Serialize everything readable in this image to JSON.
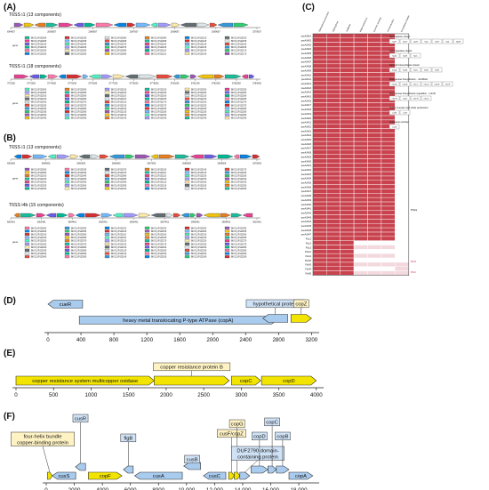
{
  "panels": {
    "A": {
      "label": "(A)",
      "subpanels": [
        {
          "title": "T6SS i1 (13 components)",
          "ticks": [
            "2064657",
            "2065657",
            "2066657",
            "2067657",
            "2068657",
            "2069657",
            "2070657"
          ],
          "gene_label": "gene"
        },
        {
          "title": "T6SS i1 (18 components)",
          "ticks": [
            "5772250",
            "5773250",
            "5774250",
            "5775250",
            "5776250",
            "5777250",
            "5778250",
            "5779250",
            "5780250",
            "5781250",
            "5782250",
            "5783250",
            "5784250"
          ],
          "gene_label": "gene"
        }
      ]
    },
    "B": {
      "label": "(B)",
      "subpanels": [
        {
          "title": "T6SS i1 (13 components)",
          "ticks": [
            "2663506",
            "2664506",
            "2665506",
            "2666506",
            "2667506",
            "2668506",
            "2669506",
            "2670506"
          ],
          "gene_label": "gene"
        },
        {
          "title": "T6SS i4b (15 components)",
          "ticks": [
            "3902461",
            "3903461",
            "3904461",
            "3905461",
            "3906461",
            "3907461",
            "3908461",
            "3909461",
            "3910461"
          ],
          "gene_label": "gene"
        }
      ]
    },
    "C": {
      "label": "(C)",
      "columns": [
        "Siderophore production",
        "Siderophore",
        "Antibiotic",
        "Metal resistance",
        "Quorum sensing",
        "IAA production",
        "Exopolysaccharide"
      ],
      "rows": [
        "pseA3401",
        "pseA3402",
        "pseA3403",
        "pseA3404",
        "pseA3405",
        "pseA3406",
        "pseA3407",
        "pseA3408",
        "pseA3409",
        "pseA3410",
        "pseA3411",
        "pseA3412",
        "pseA3413",
        "pseA3414",
        "pseA3415",
        "pseA3416",
        "pseA3417",
        "pseA3418",
        "pseA3419",
        "pseA3420",
        "pseA3421",
        "pseA3422",
        "pseA3423",
        "pseA3424",
        "pseA3425",
        "pseA3426",
        "pseA3427",
        "pseA3428",
        "pseA3429",
        "pseA3430",
        "pseA3431",
        "pseA3432",
        "pseA3433",
        "pseA3434",
        "pseA3435",
        "pseA3436",
        "pseA3437",
        "pseA3438",
        "pseA3439",
        "pseA3440",
        "pseA3441",
        "pseA3442",
        "pseA3443",
        "pseA3444",
        "pseA3445",
        "pseA3446",
        "pseA3447",
        "FluL1",
        "FluL2",
        "FluL3",
        "ParA1",
        "FluA1",
        "ParN2",
        "FluN3",
        "FluN4",
        "FluN5"
      ],
      "group_labels": [
        "PS2a",
        "PS2b",
        "PS2c"
      ],
      "colors": {
        "present": "#c9434f",
        "absent": "#ffffff",
        "partial": "#f3d9de"
      },
      "legends": [
        {
          "title": "Sphingosine cluster",
          "items": [
            "SpiF",
            "SpiG",
            "SpiH",
            "SpiJ",
            "SpiK",
            "SpiL",
            "SpiM"
          ]
        },
        {
          "title": "Sphingosaline cluster",
          "items": [
            "SpiA",
            "SpiB",
            "SpiC"
          ]
        },
        {
          "title": "Salicylic biosynthesis cluster",
          "items": [
            "SsbA",
            "SsbB",
            "SsbC",
            "SsbD",
            "SsbE"
          ]
        },
        {
          "title": "Manganese biosynthesis - mbnBGH",
          "items": [
            "mbnA",
            "mbnB",
            "mbnC",
            "mbnD",
            "mbnE",
            "mbnF"
          ]
        },
        {
          "title": "Manganese biosynthesis regulation - mbnR",
          "items": [
            "mbnR",
            "mbnI",
            "mbnH",
            "mbnS"
          ]
        },
        {
          "title": "Indole-3-acetic acid (IAA) production",
          "items": [
            "iaaM",
            "iaaH"
          ]
        },
        {
          "title": "Nucleases activity",
          "items": [
            "nucA"
          ]
        }
      ]
    },
    "D": {
      "label": "(D)",
      "genes": [
        {
          "name": "cueR",
          "start": 0,
          "end": 420,
          "strand": "-",
          "color": "#a9cbee",
          "label_pos": "inside"
        },
        {
          "name": "heavy metal translocating P-type ATPase (copA)",
          "start": 380,
          "end": 2780,
          "strand": "+",
          "color": "#a9cbee",
          "label_pos": "inside"
        },
        {
          "name": "hypothetical protein",
          "start": 2610,
          "end": 2910,
          "strand": "-",
          "color": "#a9cbee",
          "label_pos": "above"
        },
        {
          "name": "copZ",
          "start": 2950,
          "end": 3200,
          "strand": "+",
          "color": "#f3e400",
          "label_pos": "above"
        }
      ],
      "axis": {
        "ticks": [
          0,
          400,
          800,
          1200,
          1600,
          2000,
          2400,
          2800,
          3200
        ],
        "min": 0,
        "max": 3250
      }
    },
    "E": {
      "label": "(E)",
      "genes": [
        {
          "name": "copper resistance system multicopper oxidase",
          "start": 0,
          "end": 1840,
          "strand": "+",
          "color": "#f3e400",
          "label_pos": "inside"
        },
        {
          "name": "copper resistance protein B",
          "start": 1840,
          "end": 2840,
          "strand": "+",
          "color": "#f3e400",
          "label_pos": "above"
        },
        {
          "name": "copC",
          "start": 2870,
          "end": 3260,
          "strand": "+",
          "color": "#f3e400",
          "label_pos": "inside"
        },
        {
          "name": "copD",
          "start": 3270,
          "end": 4000,
          "strand": "+",
          "color": "#f3e400",
          "label_pos": "inside"
        }
      ],
      "axis": {
        "ticks": [
          0,
          500,
          1000,
          1500,
          2000,
          2500,
          3000,
          3500,
          4000
        ],
        "min": 0,
        "max": 4050
      }
    },
    "F": {
      "label": "(F)",
      "genes": [
        {
          "name": "four-helix bundle copper-binding protein",
          "start": 80,
          "end": 420,
          "strand": "+",
          "color": "#f3e400",
          "label": "box"
        },
        {
          "name": "cusS",
          "start": 420,
          "end": 2100,
          "strand": "-",
          "color": "#a9cbee",
          "label": "inside"
        },
        {
          "name": "cusR",
          "start": 2080,
          "end": 2800,
          "strand": "-",
          "color": "#a9cbee",
          "label": "box"
        },
        {
          "name": "copF",
          "start": 3000,
          "end": 5400,
          "strand": "+",
          "color": "#f3e400",
          "label": "inside"
        },
        {
          "name": "flgB",
          "start": 5500,
          "end": 6200,
          "strand": "-",
          "color": "#a9cbee",
          "label": "box"
        },
        {
          "name": "cusA",
          "start": 6300,
          "end": 9700,
          "strand": "-",
          "color": "#a9cbee",
          "label": "inside"
        },
        {
          "name": "cusB",
          "start": 9800,
          "end": 11000,
          "strand": "-",
          "color": "#a9cbee",
          "label": "box"
        },
        {
          "name": "cusC",
          "start": 11200,
          "end": 12800,
          "strand": "-",
          "color": "#a9cbee",
          "label": "inside"
        },
        {
          "name": "cusF/copZ",
          "start": 13000,
          "end": 13400,
          "strand": "+",
          "color": "#f3e400",
          "label": "box"
        },
        {
          "name": "copG",
          "start": 13400,
          "end": 13800,
          "strand": "+",
          "color": "#f3e400",
          "label": "box"
        },
        {
          "name": "DUF2790 domain-containing protein",
          "start": 13800,
          "end": 14500,
          "strand": "+",
          "color": "#a9cbee",
          "label": "box"
        },
        {
          "name": "copD",
          "start": 14600,
          "end": 15800,
          "strand": "+",
          "color": "#a9cbee",
          "label": "box"
        },
        {
          "name": "copC",
          "start": 15800,
          "end": 16400,
          "strand": "+",
          "color": "#a9cbee",
          "label": "box"
        },
        {
          "name": "copB",
          "start": 16400,
          "end": 17300,
          "strand": "+",
          "color": "#a9cbee",
          "label": "box"
        },
        {
          "name": "copA",
          "start": 17300,
          "end": 19000,
          "strand": "+",
          "color": "#a9cbee",
          "label": "inside"
        }
      ],
      "axis": {
        "ticks": [
          "0",
          "2000",
          "4000",
          "6000",
          "8000",
          "10,000",
          "12,000",
          "14,000",
          "16,000",
          "18,000"
        ],
        "min": 0,
        "max": 19200
      }
    }
  }
}
